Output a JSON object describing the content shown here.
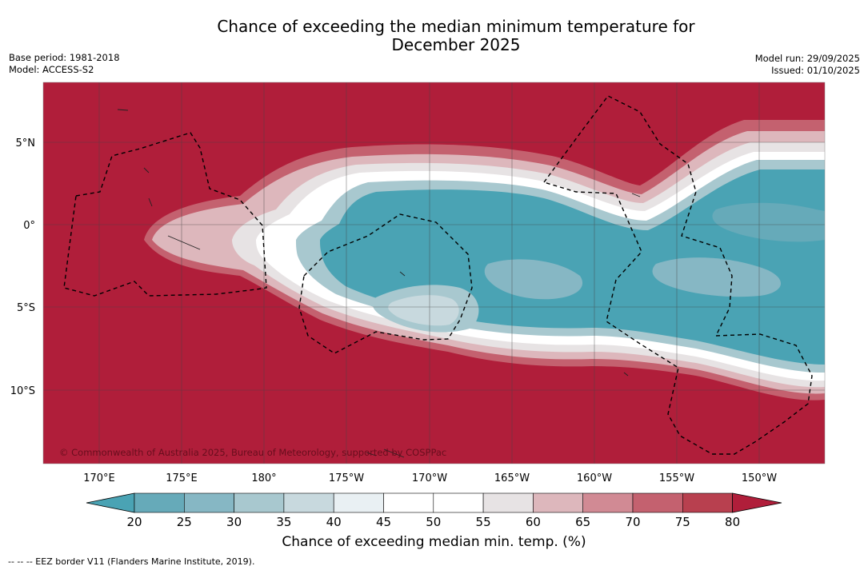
{
  "title_line1": "Chance of exceeding the median minimum temperature for",
  "title_line2": "December 2025",
  "base_period": "Base period: 1981-2018",
  "model": "Model: ACCESS-S2",
  "model_run": "Model run: 29/09/2025",
  "issued": "Issued: 01/10/2025",
  "copyright": "© Commonwealth of Australia 2025, Bureau of Meteorology, supported by COSPPac",
  "lat_labels": [
    "5°N",
    "0°",
    "5°S",
    "10°S"
  ],
  "lon_labels": [
    "170°E",
    "175°E",
    "180°",
    "175°W",
    "170°W",
    "165°W",
    "160°W",
    "155°W",
    "150°W"
  ],
  "colorbar": {
    "ticks": [
      "20",
      "25",
      "30",
      "35",
      "40",
      "45",
      "50",
      "55",
      "60",
      "65",
      "70",
      "75",
      "80"
    ],
    "label": "Chance of exceeding median min. temp. (%)",
    "colors": [
      "#4aa3b4",
      "#66aab9",
      "#86b7c4",
      "#a8c8cf",
      "#c8d9de",
      "#e9f0f3",
      "#ffffff",
      "#ffffff",
      "#e7e3e4",
      "#ddb7bc",
      "#d18a94",
      "#c4616f",
      "#b8404f",
      "#b01e3a"
    ]
  },
  "colors": {
    "above": "#b01e3a",
    "below": "#4aa3b4"
  },
  "footnote": "-- -- -- EEZ border V11 (Flanders Marine Institute, 2019)."
}
